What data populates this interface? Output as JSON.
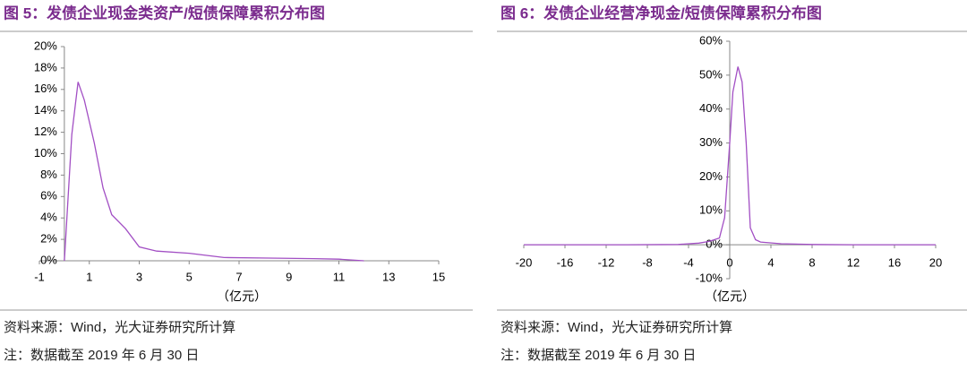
{
  "chart_data": [
    {
      "type": "line",
      "title": "图 5：发债企业现金类资产/短债保障累积分布图",
      "x_label": "（亿元）",
      "source": "资料来源：Wind，光大证券研究所计算",
      "note": "注：数据截至 2019 年 6 月 30 日",
      "color": "#a24fc4",
      "x": [
        0,
        0.3,
        0.55,
        0.8,
        1.2,
        1.55,
        1.9,
        2.45,
        3,
        3.7,
        5,
        6.4,
        8.2,
        10,
        11,
        12
      ],
      "values": [
        0,
        11.8,
        16.7,
        15,
        11,
        6.8,
        4.3,
        3,
        1.3,
        0.9,
        0.7,
        0.3,
        0.25,
        0.2,
        0.15,
        0
      ],
      "xlim": [
        -1,
        15
      ],
      "xticks": [
        -1,
        1,
        3,
        5,
        7,
        9,
        11,
        13,
        15
      ],
      "ylim": [
        0,
        20
      ],
      "yticks": [
        {
          "value": 0,
          "label": "0%"
        },
        {
          "value": 2,
          "label": "2%"
        },
        {
          "value": 4,
          "label": "4%"
        },
        {
          "value": 6,
          "label": "6%"
        },
        {
          "value": 8,
          "label": "8%"
        },
        {
          "value": 10,
          "label": "10%"
        },
        {
          "value": 12,
          "label": "12%"
        },
        {
          "value": 14,
          "label": "14%"
        },
        {
          "value": 16,
          "label": "16%"
        },
        {
          "value": 18,
          "label": "18%"
        },
        {
          "value": 20,
          "label": "20%"
        }
      ]
    },
    {
      "type": "line",
      "title": "图 6：发债企业经营净现金/短债保障累积分布图",
      "x_label": "（亿元）",
      "source": "资料来源：Wind，光大证券研究所计算",
      "note": "注：数据截至 2019 年 6 月 30 日",
      "color": "#a24fc4",
      "x": [
        -20,
        -10,
        -5,
        -3,
        -2,
        -1,
        -0.5,
        0,
        0.3,
        0.8,
        1.2,
        1.6,
        2,
        2.5,
        3,
        5,
        8,
        12,
        20
      ],
      "values": [
        0,
        0,
        0.1,
        0.5,
        1,
        2,
        8,
        30,
        45,
        52.5,
        48,
        30,
        5,
        1.5,
        0.8,
        0.3,
        0.1,
        0,
        0
      ],
      "xlim": [
        -20,
        20
      ],
      "xticks": [
        -20,
        -16,
        -12,
        -8,
        -4,
        0,
        4,
        8,
        12,
        16,
        20
      ],
      "ylim": [
        -10,
        60
      ],
      "yticks": [
        {
          "value": -10,
          "label": "-10%"
        },
        {
          "value": 0,
          "label": "0%"
        },
        {
          "value": 10,
          "label": "10%"
        },
        {
          "value": 20,
          "label": "20%"
        },
        {
          "value": 30,
          "label": "30%"
        },
        {
          "value": 40,
          "label": "40%"
        },
        {
          "value": 50,
          "label": "50%"
        },
        {
          "value": 60,
          "label": "60%"
        }
      ]
    }
  ]
}
